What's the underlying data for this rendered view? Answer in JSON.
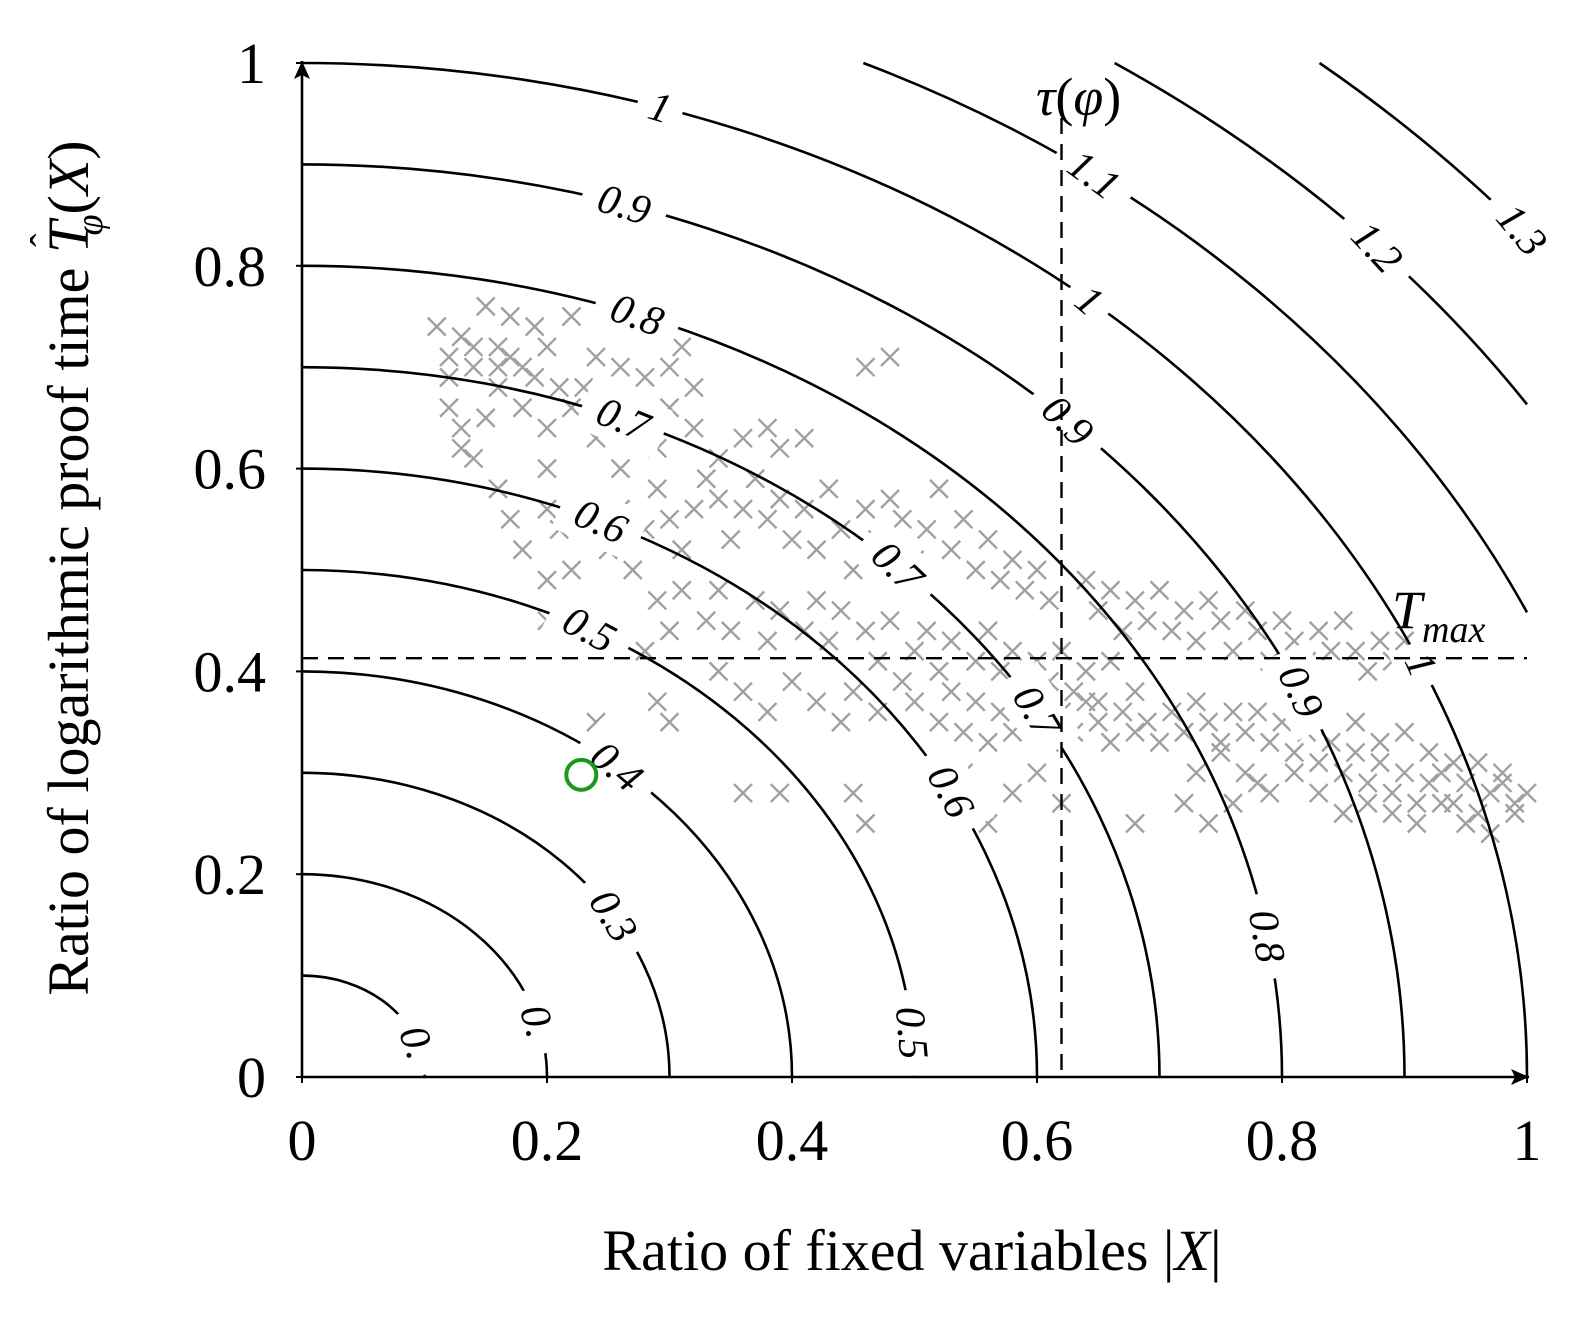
{
  "chart_data": {
    "type": "scatter",
    "xlabel_parts": [
      "Ratio of fixed variables ",
      "|",
      "X",
      "|"
    ],
    "ylabel_parts": [
      "Ratio of logarithmic proof time ",
      "T",
      "ˆ",
      "φ",
      "(",
      "X",
      ")"
    ],
    "xlim": [
      0,
      1
    ],
    "ylim": [
      0,
      1
    ],
    "x_ticks": [
      "0",
      "0.2",
      "0.4",
      "0.6",
      "0.8",
      "1"
    ],
    "y_ticks": [
      "0",
      "0.2",
      "0.4",
      "0.6",
      "0.8",
      "1"
    ],
    "grid": false,
    "contours": {
      "circular_levels": [
        0.1,
        0.2,
        0.3,
        0.4,
        0.5,
        0.6,
        0.7,
        0.8,
        0.9,
        1.0
      ],
      "circular_labels": [
        "0.",
        "0.",
        "0.3",
        "0.4",
        "0.5",
        "0.6",
        "0.7",
        "0.8",
        "0.9",
        "1",
        "0.6",
        "0.7",
        "0.8",
        "0.9",
        "1"
      ],
      "outer_levels": [
        1.1,
        1.2,
        1.3
      ],
      "outer_labels": [
        "1.1",
        "1.2",
        "1.3",
        "0.9",
        "1"
      ]
    },
    "reference_lines": {
      "vertical": {
        "x": 0.62,
        "label_parts": [
          "τ",
          "(",
          "φ",
          ")"
        ]
      },
      "horizontal": {
        "y": 0.413,
        "label_parts": [
          "T",
          "max"
        ]
      }
    },
    "highlight_point": {
      "x": 0.228,
      "y": 0.298,
      "color": "#1a9a1a"
    },
    "scatter_color": "#a0a0a0",
    "scatter_points": [
      [
        0.11,
        0.74
      ],
      [
        0.12,
        0.71
      ],
      [
        0.13,
        0.73
      ],
      [
        0.14,
        0.7
      ],
      [
        0.15,
        0.76
      ],
      [
        0.16,
        0.72
      ],
      [
        0.17,
        0.75
      ],
      [
        0.18,
        0.7
      ],
      [
        0.19,
        0.74
      ],
      [
        0.2,
        0.72
      ],
      [
        0.22,
        0.75
      ],
      [
        0.24,
        0.71
      ],
      [
        0.23,
        0.68
      ],
      [
        0.26,
        0.7
      ],
      [
        0.28,
        0.69
      ],
      [
        0.3,
        0.7
      ],
      [
        0.32,
        0.68
      ],
      [
        0.31,
        0.72
      ],
      [
        0.12,
        0.66
      ],
      [
        0.13,
        0.64
      ],
      [
        0.14,
        0.61
      ],
      [
        0.15,
        0.65
      ],
      [
        0.16,
        0.68
      ],
      [
        0.18,
        0.66
      ],
      [
        0.2,
        0.64
      ],
      [
        0.22,
        0.66
      ],
      [
        0.24,
        0.63
      ],
      [
        0.25,
        0.65
      ],
      [
        0.27,
        0.64
      ],
      [
        0.29,
        0.62
      ],
      [
        0.3,
        0.66
      ],
      [
        0.32,
        0.64
      ],
      [
        0.34,
        0.61
      ],
      [
        0.36,
        0.63
      ],
      [
        0.38,
        0.64
      ],
      [
        0.39,
        0.62
      ],
      [
        0.41,
        0.63
      ],
      [
        0.12,
        0.69
      ],
      [
        0.14,
        0.72
      ],
      [
        0.16,
        0.7
      ],
      [
        0.17,
        0.71
      ],
      [
        0.19,
        0.69
      ],
      [
        0.21,
        0.68
      ],
      [
        0.17,
        0.55
      ],
      [
        0.18,
        0.52
      ],
      [
        0.2,
        0.56
      ],
      [
        0.21,
        0.54
      ],
      [
        0.22,
        0.5
      ],
      [
        0.24,
        0.55
      ],
      [
        0.25,
        0.52
      ],
      [
        0.26,
        0.56
      ],
      [
        0.28,
        0.54
      ],
      [
        0.29,
        0.58
      ],
      [
        0.3,
        0.55
      ],
      [
        0.31,
        0.52
      ],
      [
        0.32,
        0.56
      ],
      [
        0.33,
        0.59
      ],
      [
        0.34,
        0.57
      ],
      [
        0.35,
        0.53
      ],
      [
        0.36,
        0.56
      ],
      [
        0.37,
        0.59
      ],
      [
        0.38,
        0.55
      ],
      [
        0.39,
        0.57
      ],
      [
        0.4,
        0.53
      ],
      [
        0.41,
        0.56
      ],
      [
        0.42,
        0.52
      ],
      [
        0.43,
        0.58
      ],
      [
        0.44,
        0.54
      ],
      [
        0.45,
        0.5
      ],
      [
        0.46,
        0.56
      ],
      [
        0.47,
        0.53
      ],
      [
        0.48,
        0.57
      ],
      [
        0.49,
        0.55
      ],
      [
        0.5,
        0.51
      ],
      [
        0.51,
        0.54
      ],
      [
        0.52,
        0.58
      ],
      [
        0.53,
        0.52
      ],
      [
        0.54,
        0.55
      ],
      [
        0.55,
        0.5
      ],
      [
        0.56,
        0.53
      ],
      [
        0.57,
        0.49
      ],
      [
        0.58,
        0.51
      ],
      [
        0.59,
        0.48
      ],
      [
        0.6,
        0.5
      ],
      [
        0.61,
        0.47
      ],
      [
        0.2,
        0.49
      ],
      [
        0.22,
        0.46
      ],
      [
        0.2,
        0.45
      ],
      [
        0.27,
        0.5
      ],
      [
        0.29,
        0.47
      ],
      [
        0.3,
        0.44
      ],
      [
        0.31,
        0.48
      ],
      [
        0.33,
        0.45
      ],
      [
        0.34,
        0.48
      ],
      [
        0.35,
        0.44
      ],
      [
        0.37,
        0.47
      ],
      [
        0.38,
        0.43
      ],
      [
        0.39,
        0.46
      ],
      [
        0.41,
        0.44
      ],
      [
        0.42,
        0.47
      ],
      [
        0.43,
        0.43
      ],
      [
        0.44,
        0.46
      ],
      [
        0.46,
        0.44
      ],
      [
        0.47,
        0.41
      ],
      [
        0.48,
        0.45
      ],
      [
        0.5,
        0.42
      ],
      [
        0.51,
        0.44
      ],
      [
        0.52,
        0.4
      ],
      [
        0.53,
        0.43
      ],
      [
        0.55,
        0.41
      ],
      [
        0.56,
        0.44
      ],
      [
        0.57,
        0.4
      ],
      [
        0.58,
        0.42
      ],
      [
        0.59,
        0.38
      ],
      [
        0.6,
        0.41
      ],
      [
        0.61,
        0.39
      ],
      [
        0.62,
        0.42
      ],
      [
        0.63,
        0.38
      ],
      [
        0.64,
        0.4
      ],
      [
        0.65,
        0.37
      ],
      [
        0.66,
        0.41
      ],
      [
        0.28,
        0.42
      ],
      [
        0.29,
        0.37
      ],
      [
        0.3,
        0.35
      ],
      [
        0.34,
        0.4
      ],
      [
        0.36,
        0.38
      ],
      [
        0.38,
        0.36
      ],
      [
        0.4,
        0.39
      ],
      [
        0.42,
        0.37
      ],
      [
        0.44,
        0.35
      ],
      [
        0.45,
        0.38
      ],
      [
        0.47,
        0.36
      ],
      [
        0.49,
        0.39
      ],
      [
        0.5,
        0.37
      ],
      [
        0.52,
        0.35
      ],
      [
        0.53,
        0.38
      ],
      [
        0.54,
        0.34
      ],
      [
        0.55,
        0.37
      ],
      [
        0.56,
        0.33
      ],
      [
        0.57,
        0.36
      ],
      [
        0.58,
        0.34
      ],
      [
        0.59,
        0.37
      ],
      [
        0.6,
        0.35
      ],
      [
        0.61,
        0.33
      ],
      [
        0.62,
        0.36
      ],
      [
        0.63,
        0.34
      ],
      [
        0.64,
        0.37
      ],
      [
        0.65,
        0.35
      ],
      [
        0.66,
        0.33
      ],
      [
        0.67,
        0.36
      ],
      [
        0.68,
        0.34
      ],
      [
        0.36,
        0.28
      ],
      [
        0.39,
        0.28
      ],
      [
        0.45,
        0.28
      ],
      [
        0.46,
        0.25
      ],
      [
        0.54,
        0.3
      ],
      [
        0.56,
        0.25
      ],
      [
        0.58,
        0.28
      ],
      [
        0.6,
        0.3
      ],
      [
        0.62,
        0.27
      ],
      [
        0.68,
        0.25
      ],
      [
        0.72,
        0.27
      ],
      [
        0.74,
        0.25
      ],
      [
        0.76,
        0.27
      ],
      [
        0.78,
        0.29
      ],
      [
        0.64,
        0.49
      ],
      [
        0.65,
        0.46
      ],
      [
        0.66,
        0.48
      ],
      [
        0.67,
        0.44
      ],
      [
        0.68,
        0.47
      ],
      [
        0.69,
        0.45
      ],
      [
        0.7,
        0.48
      ],
      [
        0.71,
        0.44
      ],
      [
        0.72,
        0.46
      ],
      [
        0.73,
        0.43
      ],
      [
        0.74,
        0.47
      ],
      [
        0.75,
        0.45
      ],
      [
        0.76,
        0.42
      ],
      [
        0.77,
        0.46
      ],
      [
        0.78,
        0.44
      ],
      [
        0.79,
        0.41
      ],
      [
        0.8,
        0.45
      ],
      [
        0.81,
        0.43
      ],
      [
        0.82,
        0.41
      ],
      [
        0.83,
        0.44
      ],
      [
        0.84,
        0.42
      ],
      [
        0.85,
        0.45
      ],
      [
        0.86,
        0.42
      ],
      [
        0.87,
        0.4
      ],
      [
        0.88,
        0.43
      ],
      [
        0.89,
        0.41
      ],
      [
        0.9,
        0.43
      ],
      [
        0.91,
        0.4
      ],
      [
        0.92,
        0.42
      ],
      [
        0.68,
        0.38
      ],
      [
        0.69,
        0.35
      ],
      [
        0.7,
        0.33
      ],
      [
        0.71,
        0.36
      ],
      [
        0.72,
        0.34
      ],
      [
        0.73,
        0.37
      ],
      [
        0.74,
        0.35
      ],
      [
        0.75,
        0.33
      ],
      [
        0.76,
        0.36
      ],
      [
        0.77,
        0.34
      ],
      [
        0.78,
        0.36
      ],
      [
        0.79,
        0.33
      ],
      [
        0.8,
        0.35
      ],
      [
        0.81,
        0.32
      ],
      [
        0.82,
        0.34
      ],
      [
        0.83,
        0.31
      ],
      [
        0.84,
        0.33
      ],
      [
        0.85,
        0.3
      ],
      [
        0.86,
        0.32
      ],
      [
        0.87,
        0.29
      ],
      [
        0.88,
        0.31
      ],
      [
        0.89,
        0.28
      ],
      [
        0.9,
        0.3
      ],
      [
        0.91,
        0.27
      ],
      [
        0.92,
        0.29
      ],
      [
        0.93,
        0.3
      ],
      [
        0.94,
        0.27
      ],
      [
        0.95,
        0.29
      ],
      [
        0.96,
        0.26
      ],
      [
        0.97,
        0.28
      ],
      [
        0.98,
        0.3
      ],
      [
        0.99,
        0.27
      ],
      [
        1.0,
        0.28
      ],
      [
        0.73,
        0.3
      ],
      [
        0.75,
        0.32
      ],
      [
        0.77,
        0.3
      ],
      [
        0.79,
        0.28
      ],
      [
        0.81,
        0.3
      ],
      [
        0.83,
        0.28
      ],
      [
        0.85,
        0.26
      ],
      [
        0.87,
        0.27
      ],
      [
        0.89,
        0.26
      ],
      [
        0.91,
        0.25
      ],
      [
        0.93,
        0.27
      ],
      [
        0.95,
        0.25
      ],
      [
        0.97,
        0.24
      ],
      [
        0.99,
        0.26
      ],
      [
        0.86,
        0.35
      ],
      [
        0.88,
        0.33
      ],
      [
        0.9,
        0.34
      ],
      [
        0.92,
        0.32
      ],
      [
        0.94,
        0.31
      ],
      [
        0.96,
        0.31
      ],
      [
        0.98,
        0.29
      ],
      [
        0.46,
        0.7
      ],
      [
        0.48,
        0.71
      ],
      [
        0.24,
        0.35
      ],
      [
        0.16,
        0.58
      ],
      [
        0.2,
        0.6
      ],
      [
        0.26,
        0.6
      ],
      [
        0.13,
        0.62
      ]
    ]
  }
}
